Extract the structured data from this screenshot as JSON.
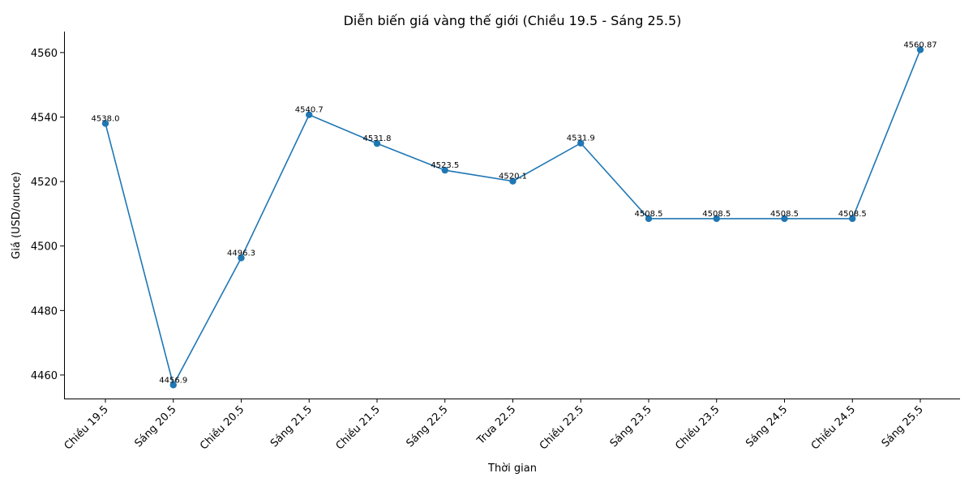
{
  "chart_data": {
    "type": "line",
    "title": "Diễn biến giá vàng thế giới (Chiều 19.5 - Sáng 25.5)",
    "xlabel": "Thời gian",
    "ylabel": "Giá (USD/ounce)",
    "categories": [
      "Chiều 19.5",
      "Sáng 20.5",
      "Chiều 20.5",
      "Sáng 21.5",
      "Chiều 21.5",
      "Sáng 22.5",
      "Trưa 22.5",
      "Chiều 22.5",
      "Sáng 23.5",
      "Chiều 23.5",
      "Sáng 24.5",
      "Chiều 24.5",
      "Sáng 25.5"
    ],
    "series": [
      {
        "values": [
          4538.0,
          4456.9,
          4496.3,
          4540.7,
          4531.8,
          4523.5,
          4520.1,
          4531.9,
          4508.5,
          4508.5,
          4508.5,
          4508.5,
          4560.87
        ],
        "labels": [
          "4538.0",
          "4456.9",
          "4496.3",
          "4540.7",
          "4531.8",
          "4523.5",
          "4520.1",
          "4531.9",
          "4508.5",
          "4508.5",
          "4508.5",
          "4508.5",
          "4560.87"
        ],
        "color": "#1f77b4"
      }
    ],
    "yticks": [
      "4460",
      "4480",
      "4500",
      "4520",
      "4540",
      "4560"
    ],
    "ylim": [
      4452.7,
      4566.5
    ],
    "grid": false,
    "legend": "none"
  }
}
